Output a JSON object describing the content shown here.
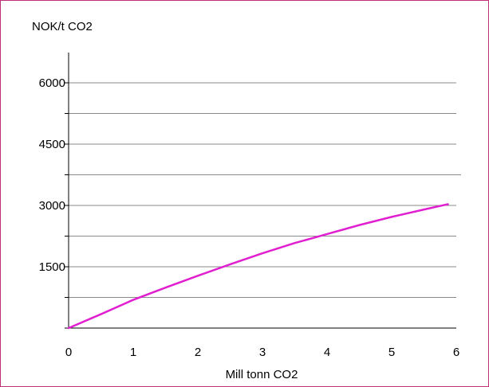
{
  "chart_data": {
    "type": "line",
    "title": "",
    "ylabel": "NOK/t CO2",
    "xlabel": "Mill tonn CO2",
    "xlim": [
      0,
      6
    ],
    "ylim": [
      0,
      6000
    ],
    "xticks": [
      0,
      1,
      2,
      3,
      4,
      5,
      6
    ],
    "yticks_labeled": [
      1500,
      3000,
      4500,
      6000
    ],
    "grid": true,
    "legend": "none",
    "series": [
      {
        "color": "#e020d0",
        "x": [
          0,
          0.5,
          1,
          1.5,
          2,
          2.5,
          3,
          3.5,
          4,
          4.5,
          5,
          5.5,
          5.87
        ],
        "y": [
          0,
          340,
          690,
          990,
          1280,
          1560,
          1830,
          2080,
          2300,
          2520,
          2720,
          2900,
          3030
        ]
      }
    ]
  }
}
